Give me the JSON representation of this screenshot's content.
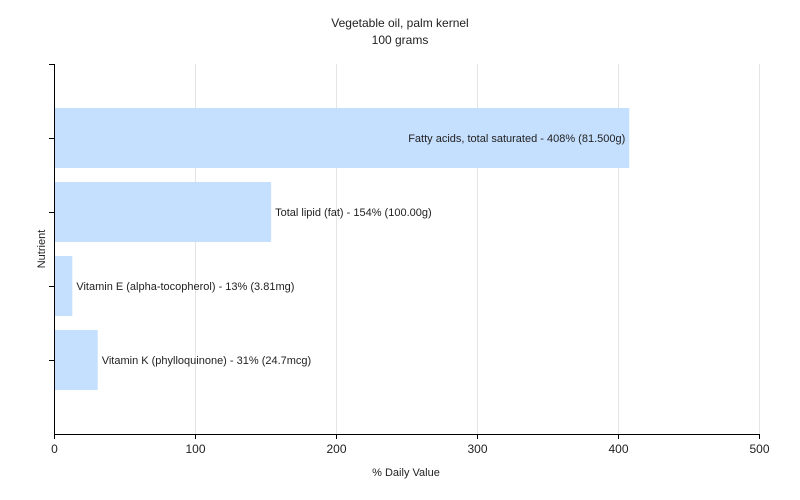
{
  "chart_data": {
    "type": "bar",
    "orientation": "horizontal",
    "title": "Vegetable oil, palm kernel",
    "subtitle": "100 grams",
    "xlabel": "% Daily Value",
    "ylabel": "Nutrient",
    "xlim": [
      0,
      500
    ],
    "xticks": [
      "0",
      "100",
      "200",
      "300",
      "400",
      "500"
    ],
    "grid": "vertical",
    "bar_color": "#c5dffe",
    "bars": [
      {
        "name": "Fatty acids, total saturated",
        "value": 408,
        "label": "Fatty acids, total saturated - 408% (81.500g)"
      },
      {
        "name": "Total lipid (fat)",
        "value": 154,
        "label": "Total lipid (fat) - 154% (100.00g)"
      },
      {
        "name": "Vitamin E (alpha-tocopherol)",
        "value": 13,
        "label": "Vitamin E (alpha-tocopherol) - 13% (3.81mg)"
      },
      {
        "name": "Vitamin K (phylloquinone)",
        "value": 31,
        "label": "Vitamin K (phylloquinone) - 31% (24.7mcg)"
      }
    ]
  }
}
